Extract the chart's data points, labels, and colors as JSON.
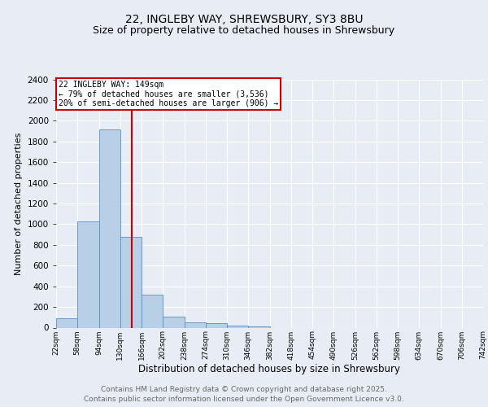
{
  "title1": "22, INGLEBY WAY, SHREWSBURY, SY3 8BU",
  "title2": "Size of property relative to detached houses in Shrewsbury",
  "xlabel": "Distribution of detached houses by size in Shrewsbury",
  "ylabel": "Number of detached properties",
  "bin_labels": [
    "22sqm",
    "58sqm",
    "94sqm",
    "130sqm",
    "166sqm",
    "202sqm",
    "238sqm",
    "274sqm",
    "310sqm",
    "346sqm",
    "382sqm",
    "418sqm",
    "454sqm",
    "490sqm",
    "526sqm",
    "562sqm",
    "598sqm",
    "634sqm",
    "670sqm",
    "706sqm",
    "742sqm"
  ],
  "bar_values": [
    90,
    1030,
    1920,
    880,
    320,
    110,
    50,
    40,
    20,
    15,
    0,
    0,
    0,
    0,
    0,
    0,
    0,
    0,
    0,
    0
  ],
  "bar_color": "#b8cfe8",
  "bar_edge_color": "#5b8ec4",
  "vline_x": 149,
  "vline_color": "#cc0000",
  "bin_edges_sqm": [
    22,
    58,
    94,
    130,
    166,
    202,
    238,
    274,
    310,
    346,
    382,
    418,
    454,
    490,
    526,
    562,
    598,
    634,
    670,
    706,
    742
  ],
  "annotation_title": "22 INGLEBY WAY: 149sqm",
  "annotation_line1": "← 79% of detached houses are smaller (3,536)",
  "annotation_line2": "20% of semi-detached houses are larger (906) →",
  "annotation_box_color": "#ffffff",
  "annotation_box_edge": "#cc0000",
  "ylim": [
    0,
    2400
  ],
  "yticks": [
    0,
    200,
    400,
    600,
    800,
    1000,
    1200,
    1400,
    1600,
    1800,
    2000,
    2200,
    2400
  ],
  "bg_color": "#e8edf5",
  "plot_bg_color": "#e8edf5",
  "footer1": "Contains HM Land Registry data © Crown copyright and database right 2025.",
  "footer2": "Contains public sector information licensed under the Open Government Licence v3.0.",
  "title_fontsize": 10,
  "subtitle_fontsize": 9,
  "footer_fontsize": 6.5
}
